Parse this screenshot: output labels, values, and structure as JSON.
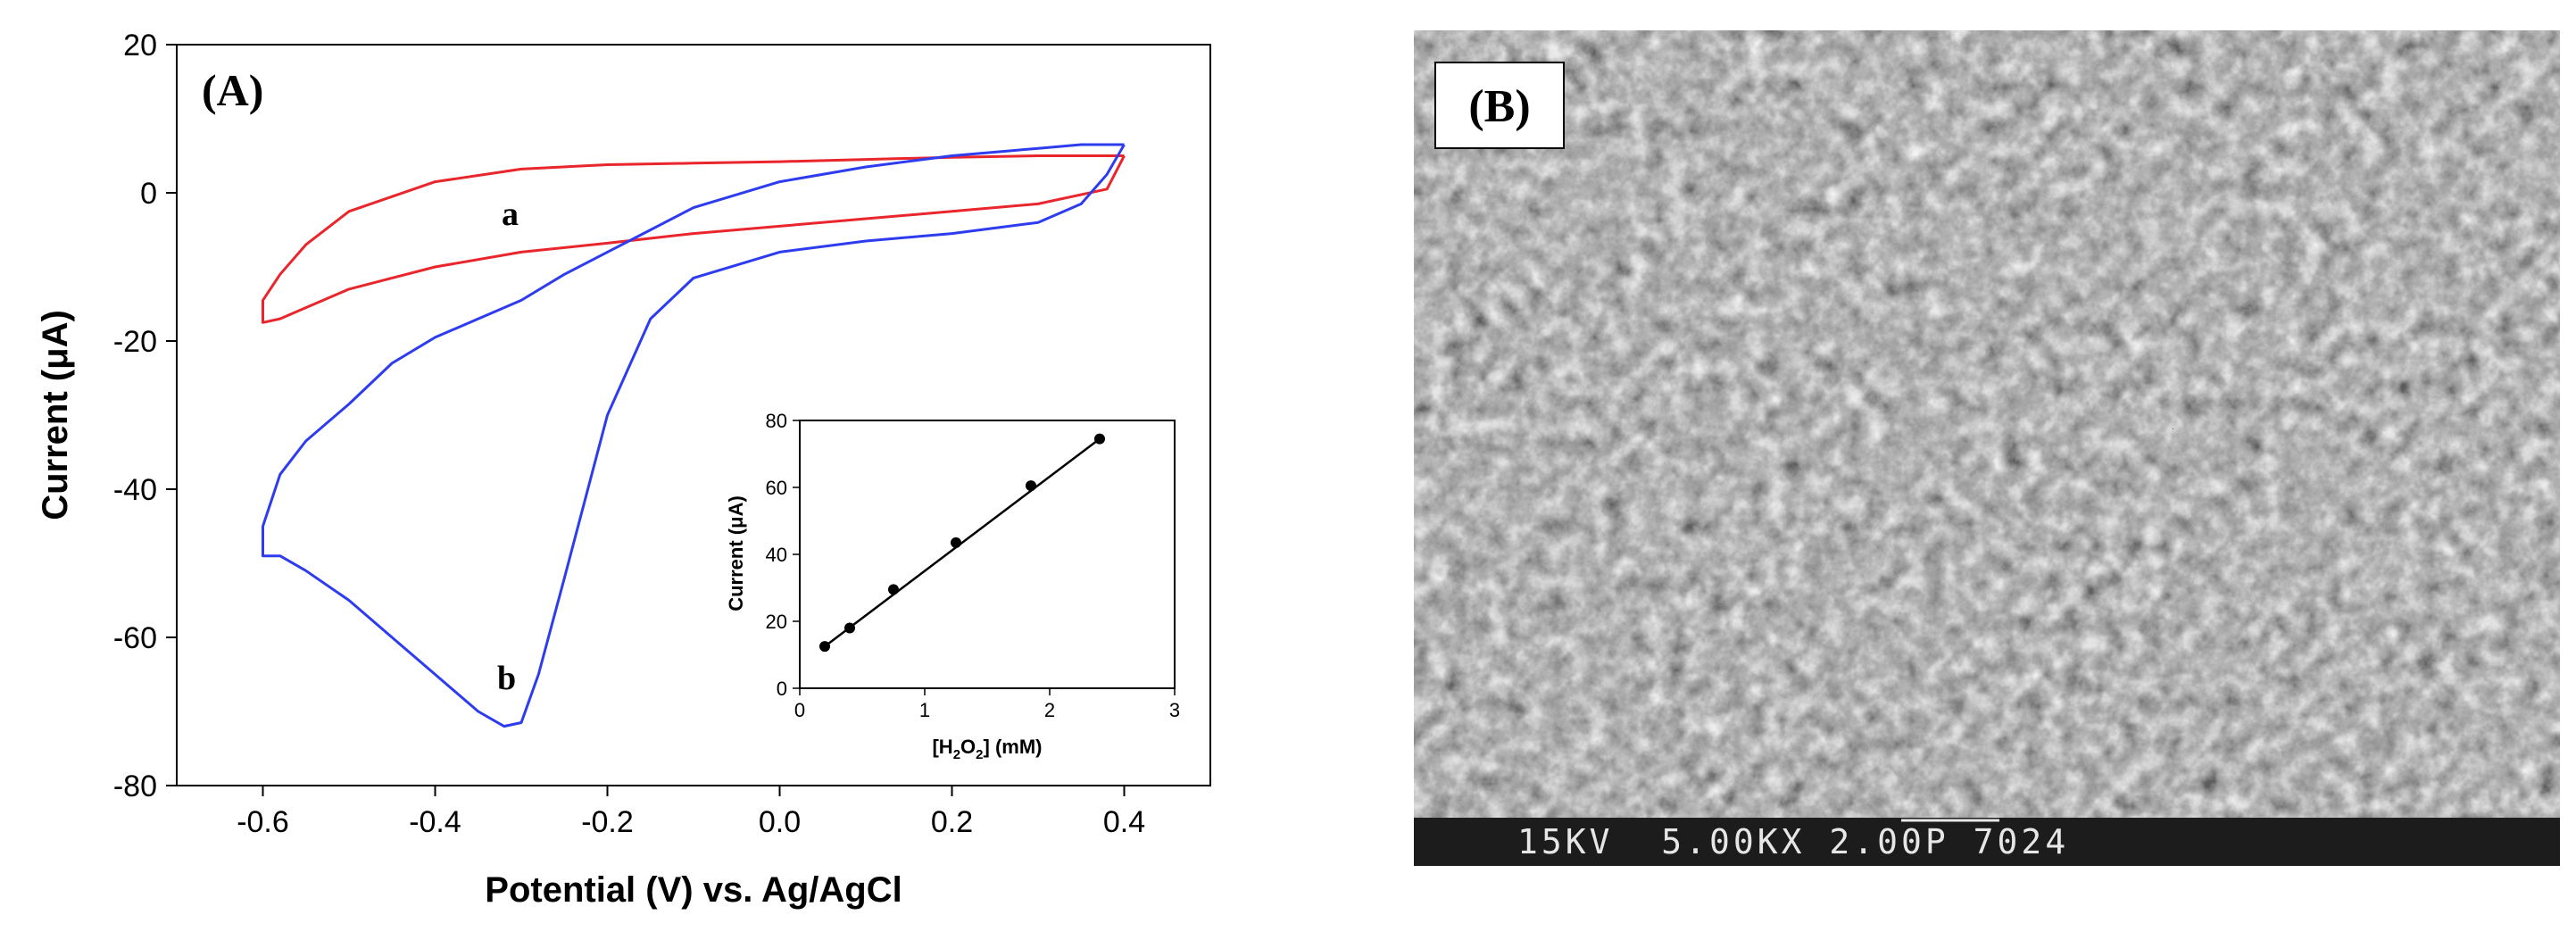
{
  "chart_data": [
    {
      "type": "line",
      "panel_label": "(A)",
      "xlabel": "Potential (V) vs. Ag/AgCl",
      "ylabel": "Current (μA)",
      "xlim": [
        -0.7,
        0.5
      ],
      "ylim": [
        -80,
        20
      ],
      "x_ticks": [
        "-0.6",
        "-0.4",
        "-0.2",
        "0.0",
        "0.2",
        "0.4"
      ],
      "x_tick_values": [
        -0.6,
        -0.4,
        -0.2,
        0.0,
        0.2,
        0.4
      ],
      "y_ticks": [
        "20",
        "0",
        "-20",
        "-40",
        "-60",
        "-80"
      ],
      "y_tick_values": [
        20,
        0,
        -20,
        -40,
        -60,
        -80
      ],
      "grid": false,
      "series": [
        {
          "name": "a",
          "color": "#e8262c",
          "x": [
            0.4,
            0.3,
            0.2,
            0.1,
            0.0,
            -0.1,
            -0.2,
            -0.3,
            -0.4,
            -0.5,
            -0.55,
            -0.58,
            -0.6,
            -0.6,
            -0.58,
            -0.55,
            -0.5,
            -0.45,
            -0.4,
            -0.3,
            -0.2,
            -0.1,
            0.0,
            0.1,
            0.2,
            0.3,
            0.38,
            0.4
          ],
          "y": [
            5,
            5.0,
            4.8,
            4.5,
            4.2,
            4.0,
            3.8,
            3.2,
            1.5,
            -2.5,
            -7,
            -11,
            -14.5,
            -17.5,
            -17,
            -15.5,
            -13,
            -11.5,
            -10,
            -8,
            -6.8,
            -5.5,
            -4.5,
            -3.5,
            -2.5,
            -1.5,
            0.5,
            5
          ]
        },
        {
          "name": "b",
          "color": "#2e3cf0",
          "x": [
            0.4,
            0.38,
            0.35,
            0.3,
            0.2,
            0.1,
            0.0,
            -0.1,
            -0.15,
            -0.2,
            -0.25,
            -0.28,
            -0.3,
            -0.32,
            -0.35,
            -0.4,
            -0.45,
            -0.5,
            -0.55,
            -0.58,
            -0.6,
            -0.6,
            -0.58,
            -0.55,
            -0.5,
            -0.45,
            -0.4,
            -0.35,
            -0.3,
            -0.25,
            -0.2,
            -0.15,
            -0.1,
            0.0,
            0.1,
            0.2,
            0.3,
            0.35,
            0.4
          ],
          "y": [
            6.5,
            2.5,
            -1.5,
            -4,
            -5.5,
            -6.5,
            -8,
            -11.5,
            -17,
            -30,
            -52,
            -65,
            -71.5,
            -72,
            -70,
            -65,
            -60,
            -55,
            -51,
            -49,
            -49,
            -45,
            -38,
            -33.5,
            -28.5,
            -23,
            -19.5,
            -17,
            -14.5,
            -11,
            -8,
            -5,
            -2,
            1.5,
            3.5,
            5,
            6,
            6.5,
            6.5
          ]
        }
      ],
      "curve_labels": [
        "a",
        "b"
      ],
      "inset": {
        "type": "scatter",
        "xlabel_main": "[H",
        "xlabel_sub1": "2",
        "xlabel_mid": "O",
        "xlabel_sub2": "2",
        "xlabel_tail": "] (mM)",
        "ylabel": "Current (μA)",
        "xlim": [
          0,
          3
        ],
        "ylim": [
          0,
          80
        ],
        "x_ticks": [
          "0",
          "1",
          "2",
          "3"
        ],
        "x_tick_values": [
          0,
          1,
          2,
          3
        ],
        "y_ticks": [
          "0",
          "20",
          "40",
          "60",
          "80"
        ],
        "y_tick_values": [
          0,
          20,
          40,
          60,
          80
        ],
        "x": [
          0.2,
          0.4,
          0.75,
          1.25,
          1.85,
          2.4
        ],
        "y": [
          12.5,
          18,
          29.5,
          43.5,
          60.5,
          74.5
        ],
        "fit_line": {
          "x": [
            0.2,
            2.4
          ],
          "y": [
            12.5,
            74.5
          ]
        }
      }
    }
  ],
  "panel_b": {
    "label": "(B)",
    "scale_bar_text": "15KV  5.00KX 2.00P 7024"
  }
}
